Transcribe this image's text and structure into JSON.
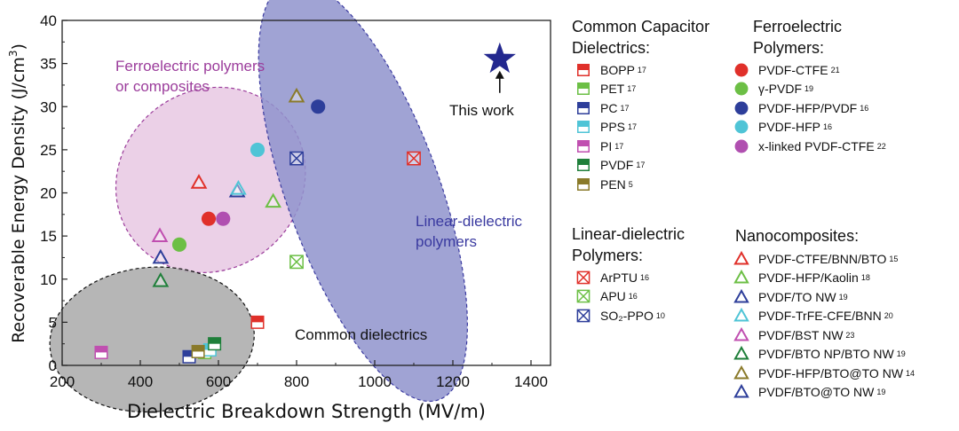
{
  "chart_data": {
    "type": "scatter",
    "title": "",
    "xlabel": "Dielectric Breakdown Strength (MV/m)",
    "ylabel_main": "Recoverable Energy Density (J/cm",
    "ylabel_exp": "3",
    "ylabel_close": ")",
    "xlim": [
      200,
      1450
    ],
    "ylim": [
      0,
      40
    ],
    "xticks": [
      "200",
      "400",
      "600",
      "800",
      "1000",
      "1200",
      "1400"
    ],
    "yticks": [
      "0",
      "5",
      "10",
      "15",
      "20",
      "25",
      "30",
      "35",
      "40"
    ],
    "regions": [
      {
        "name": "Ferroelectric polymers or composites",
        "line1": "Ferroelectric polymers",
        "line2": "or composites",
        "color": "#9b3c9b",
        "fill": "#e8c8e3"
      },
      {
        "name": "Linear-dielectric polymers",
        "line1": "Linear-dielectric",
        "line2": "polymers",
        "color": "#3a3aa0",
        "fill": "#8f93cc"
      },
      {
        "name": "Common dielectrics",
        "line1": "Common dielectrics",
        "line2": "",
        "color": "#111111",
        "fill": "#a9a9a9"
      }
    ],
    "this_work": {
      "label": "This work",
      "x": 1320,
      "y": 35.5,
      "color": "#23288f"
    },
    "points": [
      {
        "group": "BOPP",
        "marker": "half-square",
        "color": "#e0302a",
        "x": 700,
        "y": 5
      },
      {
        "group": "PET",
        "marker": "half-square",
        "color": "#6cbf45",
        "x": 565,
        "y": 1.5
      },
      {
        "group": "PC",
        "marker": "half-square",
        "color": "#2d3e9a",
        "x": 525,
        "y": 1
      },
      {
        "group": "PPS",
        "marker": "half-square",
        "color": "#4fc4d6",
        "x": 578,
        "y": 1.8
      },
      {
        "group": "PI",
        "marker": "half-square",
        "color": "#c04fb0",
        "x": 300,
        "y": 1.5
      },
      {
        "group": "PVDF",
        "marker": "half-square",
        "color": "#1f7f3a",
        "x": 590,
        "y": 2.5
      },
      {
        "group": "PEN",
        "marker": "half-square",
        "color": "#8a7a2a",
        "x": 548,
        "y": 1.6
      },
      {
        "group": "PVDF-CTFE",
        "marker": "circle",
        "color": "#e0302a",
        "x": 575,
        "y": 17
      },
      {
        "group": "γ-PVDF",
        "marker": "circle",
        "color": "#6cbf45",
        "x": 500,
        "y": 14
      },
      {
        "group": "PVDF-HFP/PVDF",
        "marker": "circle",
        "color": "#2d3e9a",
        "x": 855,
        "y": 30
      },
      {
        "group": "PVDF-HFP",
        "marker": "circle",
        "color": "#4fc4d6",
        "x": 700,
        "y": 25
      },
      {
        "group": "x-linked PVDF-CTFE",
        "marker": "circle",
        "color": "#b04fb0",
        "x": 612,
        "y": 17
      },
      {
        "group": "ArPTU",
        "marker": "crossbox",
        "color": "#e0302a",
        "x": 1100,
        "y": 24
      },
      {
        "group": "APU",
        "marker": "crossbox",
        "color": "#6cbf45",
        "x": 800,
        "y": 12
      },
      {
        "group": "SO2-PPO",
        "marker": "crossbox",
        "color": "#2d3e9a",
        "x": 800,
        "y": 24
      },
      {
        "group": "PVDF-CTFE/BNN/BTO",
        "marker": "triangle",
        "color": "#e0302a",
        "x": 550,
        "y": 21.2
      },
      {
        "group": "PVDF-HFP/Kaolin",
        "marker": "triangle",
        "color": "#6cbf45",
        "x": 740,
        "y": 19
      },
      {
        "group": "PVDF/TO NW",
        "marker": "triangle",
        "color": "#2d3e9a",
        "x": 648,
        "y": 20.2
      },
      {
        "group": "PVDF-TrFE-CFE/BNN",
        "marker": "triangle",
        "color": "#4fc4d6",
        "x": 651,
        "y": 20.5
      },
      {
        "group": "PVDF/BST NW",
        "marker": "triangle",
        "color": "#c04fb0",
        "x": 450,
        "y": 15
      },
      {
        "group": "PVDF/BTO NP/BTO NW",
        "marker": "triangle",
        "color": "#1f7f3a",
        "x": 452,
        "y": 9.8
      },
      {
        "group": "PVDF-HFP/BTO@TO NW",
        "marker": "triangle",
        "color": "#8a7a2a",
        "x": 800,
        "y": 31.2
      },
      {
        "group": "PVDF/BTO@TO NW",
        "marker": "triangle",
        "color": "#2d3e9a",
        "x": 452,
        "y": 12.5
      }
    ]
  },
  "legend": {
    "common": {
      "title_line1": "Common Capacitor",
      "title_line2": "Dielectrics:",
      "items": [
        {
          "label": "BOPP",
          "ref": "17",
          "color": "#e0302a",
          "marker": "half-square"
        },
        {
          "label": "PET",
          "ref": "17",
          "color": "#6cbf45",
          "marker": "half-square"
        },
        {
          "label": "PC",
          "ref": "17",
          "color": "#2d3e9a",
          "marker": "half-square"
        },
        {
          "label": "PPS",
          "ref": "17",
          "color": "#4fc4d6",
          "marker": "half-square"
        },
        {
          "label": "PI",
          "ref": "17",
          "color": "#c04fb0",
          "marker": "half-square"
        },
        {
          "label": "PVDF",
          "ref": "17",
          "color": "#1f7f3a",
          "marker": "half-square"
        },
        {
          "label": "PEN",
          "ref": "5",
          "color": "#8a7a2a",
          "marker": "half-square"
        }
      ]
    },
    "linear": {
      "title_line1": "Linear-dielectric",
      "title_line2": "Polymers:",
      "items": [
        {
          "label": "ArPTU",
          "ref": "16",
          "color": "#e0302a",
          "marker": "crossbox"
        },
        {
          "label": "APU",
          "ref": "16",
          "color": "#6cbf45",
          "marker": "crossbox"
        },
        {
          "label": "SO₂-PPO",
          "ref": "10",
          "color": "#2d3e9a",
          "marker": "crossbox"
        }
      ]
    },
    "ferro": {
      "title_line1": "Ferroelectric",
      "title_line2": "Polymers:",
      "items": [
        {
          "label": "PVDF-CTFE",
          "ref": "21",
          "color": "#e0302a",
          "marker": "circle"
        },
        {
          "label": "γ-PVDF",
          "ref": "19",
          "color": "#6cbf45",
          "marker": "circle"
        },
        {
          "label": "PVDF-HFP/PVDF",
          "ref": "16",
          "color": "#2d3e9a",
          "marker": "circle"
        },
        {
          "label": "PVDF-HFP",
          "ref": "16",
          "color": "#4fc4d6",
          "marker": "circle"
        },
        {
          "label": "x-linked PVDF-CTFE",
          "ref": "22",
          "color": "#b04fb0",
          "marker": "circle"
        }
      ]
    },
    "nano": {
      "title_line1": "Nanocomposites:",
      "items": [
        {
          "label": "PVDF-CTFE/BNN/BTO",
          "ref": "15",
          "color": "#e0302a",
          "marker": "triangle"
        },
        {
          "label": "PVDF-HFP/Kaolin",
          "ref": "18",
          "color": "#6cbf45",
          "marker": "triangle"
        },
        {
          "label": "PVDF/TO NW",
          "ref": "19",
          "color": "#2d3e9a",
          "marker": "triangle"
        },
        {
          "label": "PVDF-TrFE-CFE/BNN",
          "ref": "20",
          "color": "#4fc4d6",
          "marker": "triangle"
        },
        {
          "label": "PVDF/BST NW",
          "ref": "23",
          "color": "#c04fb0",
          "marker": "triangle"
        },
        {
          "label": "PVDF/BTO NP/BTO NW",
          "ref": "19",
          "color": "#1f7f3a",
          "marker": "triangle"
        },
        {
          "label": "PVDF-HFP/BTO@TO NW",
          "ref": "14",
          "color": "#8a7a2a",
          "marker": "triangle"
        },
        {
          "label": "PVDF/BTO@TO NW",
          "ref": "19",
          "color": "#2d3e9a",
          "marker": "triangle"
        }
      ]
    }
  }
}
